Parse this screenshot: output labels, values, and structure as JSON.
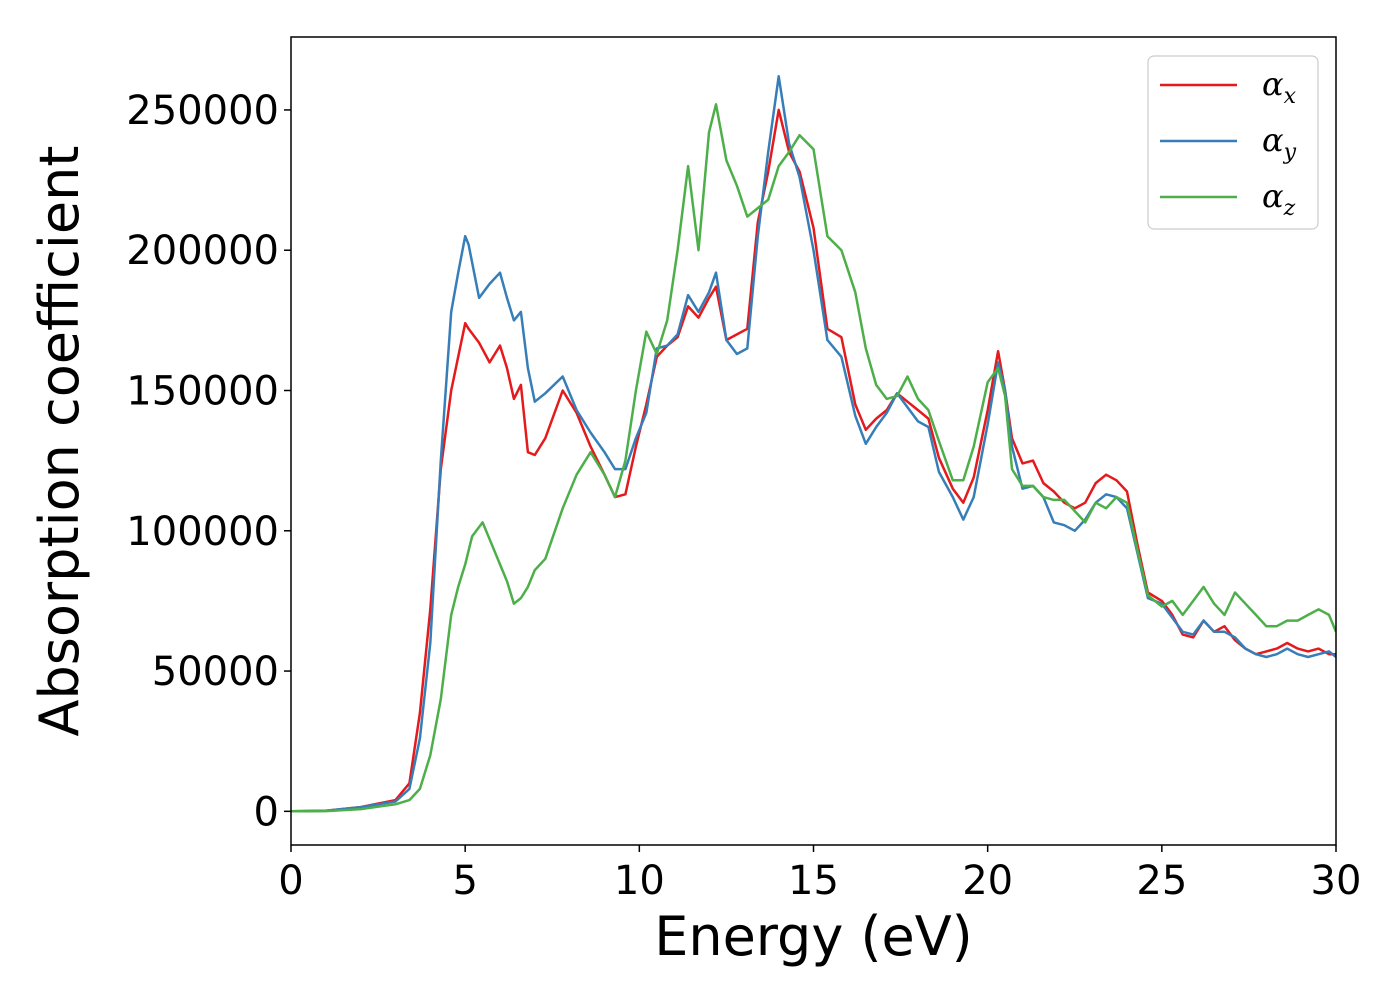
{
  "chart_data": {
    "type": "line",
    "xlabel": "Energy (eV)",
    "ylabel": "Absorption coefficient",
    "xlim": [
      0,
      30
    ],
    "ylim": [
      -12000,
      276000
    ],
    "xticks": [
      0,
      5,
      10,
      15,
      20,
      25,
      30
    ],
    "yticks": [
      0,
      50000,
      100000,
      150000,
      200000,
      250000
    ],
    "grid": false,
    "legend_position": "top-right",
    "series": [
      {
        "name": "αx",
        "base": "α",
        "sub": "x",
        "color": "#e41a1c",
        "x": [
          0,
          1,
          2,
          3,
          3.4,
          3.7,
          4.0,
          4.3,
          4.6,
          4.8,
          5.0,
          5.1,
          5.4,
          5.7,
          6.0,
          6.2,
          6.4,
          6.6,
          6.8,
          7.0,
          7.3,
          7.8,
          8.2,
          8.6,
          9.0,
          9.3,
          9.6,
          9.9,
          10.2,
          10.5,
          10.8,
          11.1,
          11.4,
          11.7,
          12.0,
          12.2,
          12.5,
          12.8,
          13.1,
          13.4,
          13.7,
          14.0,
          14.3,
          14.6,
          15.0,
          15.4,
          15.8,
          16.2,
          16.5,
          16.8,
          17.1,
          17.4,
          17.7,
          18.0,
          18.3,
          18.6,
          19.0,
          19.3,
          19.6,
          20.0,
          20.3,
          20.5,
          20.7,
          21.0,
          21.3,
          21.6,
          21.9,
          22.2,
          22.5,
          22.8,
          23.1,
          23.4,
          23.7,
          24.0,
          24.3,
          24.6,
          25.0,
          25.3,
          25.6,
          25.9,
          26.2,
          26.5,
          26.8,
          27.1,
          27.4,
          27.7,
          28.0,
          28.3,
          28.6,
          28.9,
          29.2,
          29.5,
          29.8,
          30
        ],
        "y": [
          0,
          200,
          1500,
          4000,
          10000,
          35000,
          72000,
          122000,
          150000,
          162000,
          174000,
          172000,
          167000,
          160000,
          166000,
          158000,
          147000,
          152000,
          128000,
          127000,
          133000,
          150000,
          142000,
          130000,
          120000,
          112000,
          113000,
          130000,
          145000,
          162000,
          166000,
          169000,
          180000,
          176000,
          183000,
          187000,
          168000,
          170000,
          172000,
          210000,
          228000,
          250000,
          235000,
          228000,
          208000,
          172000,
          169000,
          145000,
          136000,
          140000,
          143000,
          149000,
          146000,
          143000,
          140000,
          126000,
          115000,
          110000,
          119000,
          143000,
          164000,
          150000,
          133000,
          124000,
          125000,
          117000,
          114000,
          110000,
          108000,
          110000,
          117000,
          120000,
          118000,
          114000,
          95000,
          78000,
          75000,
          70000,
          63000,
          62000,
          68000,
          64000,
          66000,
          61000,
          58000,
          56000,
          57000,
          58000,
          60000,
          58000,
          57000,
          58000,
          56000,
          56000
        ]
      },
      {
        "name": "αy",
        "base": "α",
        "sub": "y",
        "color": "#377eb8",
        "x": [
          0,
          1,
          2,
          3,
          3.4,
          3.7,
          4.0,
          4.3,
          4.6,
          4.8,
          5.0,
          5.1,
          5.4,
          5.7,
          6.0,
          6.2,
          6.4,
          6.6,
          6.8,
          7.0,
          7.3,
          7.8,
          8.2,
          8.6,
          9.0,
          9.3,
          9.6,
          9.9,
          10.2,
          10.5,
          10.8,
          11.1,
          11.4,
          11.7,
          12.0,
          12.2,
          12.5,
          12.8,
          13.1,
          13.4,
          13.7,
          14.0,
          14.3,
          14.6,
          15.0,
          15.4,
          15.8,
          16.2,
          16.5,
          16.8,
          17.1,
          17.4,
          17.7,
          18.0,
          18.3,
          18.6,
          19.0,
          19.3,
          19.6,
          20.0,
          20.3,
          20.5,
          20.7,
          21.0,
          21.3,
          21.6,
          21.9,
          22.2,
          22.5,
          22.8,
          23.1,
          23.4,
          23.7,
          24.0,
          24.3,
          24.6,
          25.0,
          25.3,
          25.6,
          25.9,
          26.2,
          26.5,
          26.8,
          27.1,
          27.4,
          27.7,
          28.0,
          28.3,
          28.6,
          28.9,
          29.2,
          29.5,
          29.8,
          30
        ],
        "y": [
          0,
          200,
          1500,
          3500,
          8000,
          26000,
          60000,
          125000,
          178000,
          192000,
          205000,
          202000,
          183000,
          188000,
          192000,
          183000,
          175000,
          178000,
          158000,
          146000,
          149000,
          155000,
          143000,
          135000,
          128000,
          122000,
          122000,
          133000,
          142000,
          165000,
          166000,
          170000,
          184000,
          178000,
          185000,
          192000,
          168000,
          163000,
          165000,
          205000,
          235000,
          262000,
          238000,
          226000,
          200000,
          168000,
          162000,
          141000,
          131000,
          137000,
          142000,
          149000,
          144000,
          139000,
          137000,
          121000,
          112000,
          104000,
          112000,
          138000,
          160000,
          150000,
          130000,
          115000,
          116000,
          112000,
          103000,
          102000,
          100000,
          104000,
          110000,
          113000,
          112000,
          108000,
          92000,
          76000,
          74000,
          69000,
          64000,
          63000,
          68000,
          64000,
          64000,
          62000,
          58000,
          56000,
          55000,
          56000,
          58000,
          56000,
          55000,
          56000,
          57000,
          55000
        ]
      },
      {
        "name": "αz",
        "base": "α",
        "sub": "z",
        "color": "#4daf4a",
        "x": [
          0,
          1,
          2,
          3,
          3.4,
          3.7,
          4.0,
          4.3,
          4.6,
          4.8,
          5.0,
          5.2,
          5.5,
          5.7,
          6.0,
          6.2,
          6.4,
          6.6,
          6.8,
          7.0,
          7.3,
          7.8,
          8.2,
          8.6,
          9.0,
          9.3,
          9.6,
          9.9,
          10.2,
          10.5,
          10.8,
          11.1,
          11.4,
          11.7,
          12.0,
          12.2,
          12.5,
          12.8,
          13.1,
          13.4,
          13.7,
          14.0,
          14.3,
          14.6,
          15.0,
          15.4,
          15.8,
          16.2,
          16.5,
          16.8,
          17.1,
          17.4,
          17.7,
          18.0,
          18.3,
          18.6,
          19.0,
          19.3,
          19.6,
          20.0,
          20.3,
          20.5,
          20.7,
          21.0,
          21.3,
          21.6,
          21.9,
          22.2,
          22.5,
          22.8,
          23.1,
          23.4,
          23.7,
          24.0,
          24.3,
          24.6,
          25.0,
          25.3,
          25.6,
          25.9,
          26.2,
          26.5,
          26.8,
          27.1,
          27.4,
          27.7,
          28.0,
          28.3,
          28.6,
          28.9,
          29.2,
          29.5,
          29.8,
          30
        ],
        "y": [
          0,
          100,
          800,
          2500,
          4000,
          8000,
          20000,
          40000,
          70000,
          80000,
          88000,
          98000,
          103000,
          97000,
          88000,
          82000,
          74000,
          76000,
          80000,
          86000,
          90000,
          108000,
          120000,
          128000,
          120000,
          112000,
          125000,
          150000,
          171000,
          163000,
          175000,
          200000,
          230000,
          200000,
          242000,
          252000,
          232000,
          223000,
          212000,
          215000,
          218000,
          230000,
          235000,
          241000,
          236000,
          205000,
          200000,
          185000,
          165000,
          152000,
          147000,
          148000,
          155000,
          147000,
          143000,
          132000,
          118000,
          118000,
          130000,
          153000,
          158000,
          148000,
          122000,
          116000,
          116000,
          112000,
          111000,
          111000,
          107000,
          103000,
          110000,
          108000,
          112000,
          110000,
          93000,
          77000,
          73000,
          75000,
          70000,
          75000,
          80000,
          74000,
          70000,
          78000,
          74000,
          70000,
          66000,
          66000,
          68000,
          68000,
          70000,
          72000,
          70000,
          64000
        ]
      }
    ]
  }
}
